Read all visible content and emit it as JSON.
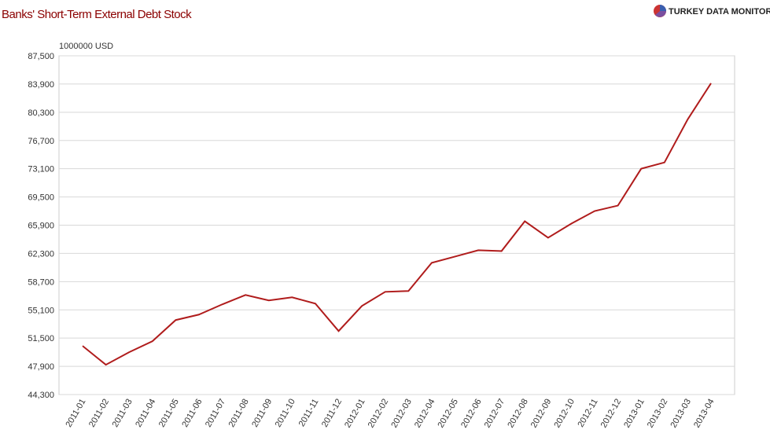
{
  "chart_data": {
    "type": "line",
    "title": "Banks' Short-Term External Debt Stock",
    "brand": "TURKEY DATA MONITOR",
    "unit_label": "1000000 USD",
    "categories": [
      "2011-01",
      "2011-02",
      "2011-03",
      "2011-04",
      "2011-05",
      "2011-06",
      "2011-07",
      "2011-08",
      "2011-09",
      "2011-10",
      "2011-11",
      "2011-12",
      "2012-01",
      "2012-02",
      "2012-03",
      "2012-04",
      "2012-05",
      "2012-06",
      "2012-07",
      "2012-08",
      "2012-09",
      "2012-10",
      "2012-11",
      "2012-12",
      "2013-01",
      "2013-02",
      "2013-03",
      "2013-04"
    ],
    "values": [
      50500,
      48100,
      49700,
      51100,
      53800,
      54500,
      55800,
      57000,
      56300,
      56700,
      55900,
      52400,
      55600,
      57400,
      57500,
      61100,
      61900,
      62700,
      62600,
      66400,
      64300,
      66100,
      67700,
      68400,
      73100,
      73900,
      79400,
      84000
    ],
    "color": "#b01c1c",
    "ylim": [
      44300,
      87500
    ],
    "yticks": [
      {
        "value": 44300,
        "label": "44,300"
      },
      {
        "value": 47900,
        "label": "47,900"
      },
      {
        "value": 51500,
        "label": "51,500"
      },
      {
        "value": 55100,
        "label": "55,100"
      },
      {
        "value": 58700,
        "label": "58,700"
      },
      {
        "value": 62300,
        "label": "62,300"
      },
      {
        "value": 65900,
        "label": "65,900"
      },
      {
        "value": 69500,
        "label": "69,500"
      },
      {
        "value": 73100,
        "label": "73,100"
      },
      {
        "value": 76700,
        "label": "76,700"
      },
      {
        "value": 80300,
        "label": "80,300"
      },
      {
        "value": 83900,
        "label": "83,900"
      },
      {
        "value": 87500,
        "label": "87,500"
      }
    ],
    "grid": true
  }
}
